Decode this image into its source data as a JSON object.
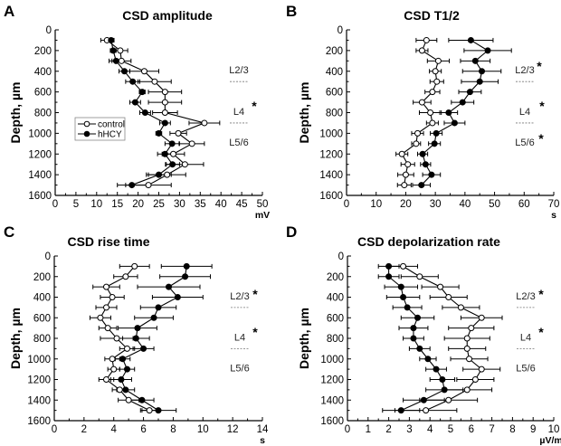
{
  "chart_data": [
    {
      "type": "line",
      "panel": "A",
      "title": "CSD amplitude",
      "xlabel": "mV",
      "ylabel": "Depth, µm",
      "xlim": [
        0,
        50
      ],
      "ylim": [
        0,
        1600
      ],
      "y_inverted": true,
      "xticks": [
        "0",
        "5",
        "10",
        "15",
        "20",
        "25",
        "30",
        "35",
        "40",
        "45",
        "50"
      ],
      "yticks": [
        "0",
        "200",
        "400",
        "600",
        "800",
        "1000",
        "1200",
        "1400",
        "1600"
      ],
      "depths": [
        100,
        200,
        300,
        400,
        500,
        600,
        700,
        800,
        900,
        1000,
        1100,
        1200,
        1300,
        1400,
        1500
      ],
      "legend": {
        "placement": "center-left",
        "entries": [
          "control",
          "hHCY"
        ]
      },
      "layers": [
        {
          "label": "L2/3",
          "star": false
        },
        {
          "label": "L4",
          "star": true
        },
        {
          "label": "L5/6",
          "star": false
        }
      ],
      "series": [
        {
          "name": "control",
          "marker": "open-circle",
          "values": [
            12.5,
            15.7,
            16,
            21.5,
            24,
            26.5,
            26.5,
            26.5,
            36,
            29.7,
            33,
            28.5,
            31.3,
            27,
            22.5
          ],
          "errors": [
            1.5,
            1.8,
            2.3,
            3.5,
            4,
            4,
            4,
            3,
            3.7,
            2,
            3,
            2.7,
            4.5,
            4.5,
            5.5
          ]
        },
        {
          "name": "hHCY",
          "marker": "filled-circle",
          "values": [
            13.5,
            14,
            14.7,
            16.7,
            18.7,
            21,
            19.3,
            21.7,
            26.5,
            25,
            28.2,
            26.5,
            28.3,
            25,
            18.5
          ],
          "errors": [
            0.7,
            0.7,
            1.7,
            1.3,
            1.7,
            0.7,
            1.3,
            1.3,
            1.3,
            0.7,
            1.7,
            1.8,
            1.7,
            3,
            3.5
          ]
        }
      ]
    },
    {
      "type": "line",
      "panel": "B",
      "title": "CSD T1/2",
      "xlabel": "s",
      "ylabel": "Depth, µm",
      "xlim": [
        0,
        70
      ],
      "ylim": [
        0,
        1600
      ],
      "y_inverted": true,
      "xticks": [
        "0",
        "10",
        "20",
        "30",
        "40",
        "50",
        "60",
        "70"
      ],
      "yticks": [
        "0",
        "200",
        "400",
        "600",
        "800",
        "1000",
        "1200",
        "1400",
        "1600"
      ],
      "depths": [
        100,
        200,
        300,
        400,
        500,
        600,
        700,
        800,
        900,
        1000,
        1100,
        1200,
        1300,
        1400,
        1500
      ],
      "layers": [
        {
          "label": "L2/3",
          "star": true
        },
        {
          "label": "L4",
          "star": true
        },
        {
          "label": "L5/6",
          "star": true
        }
      ],
      "series": [
        {
          "name": "control",
          "marker": "open-circle",
          "values": [
            27,
            25.5,
            31,
            30,
            30.5,
            29,
            25.5,
            28.3,
            29,
            24,
            23.5,
            18.7,
            20.7,
            20,
            19.5
          ],
          "errors": [
            3.5,
            2,
            3.7,
            2,
            2.3,
            2.5,
            3,
            3.7,
            2,
            2,
            1.5,
            2,
            2.3,
            2.7,
            2.3
          ]
        },
        {
          "name": "hHCY",
          "marker": "filled-circle",
          "values": [
            42,
            47.7,
            43.5,
            45.7,
            45,
            41.7,
            39.2,
            34.5,
            36.5,
            30.3,
            29.7,
            25.7,
            26.7,
            28.7,
            25.3
          ],
          "errors": [
            7.5,
            8,
            5,
            6.5,
            6.2,
            3.8,
            3.8,
            3,
            3.5,
            2,
            2,
            1.7,
            1.7,
            3,
            3
          ]
        }
      ]
    },
    {
      "type": "line",
      "panel": "C",
      "title": "CSD rise time",
      "xlabel": "s",
      "ylabel": "Depth, µm",
      "xlim": [
        0,
        14
      ],
      "ylim": [
        0,
        1600
      ],
      "y_inverted": true,
      "xticks": [
        "0",
        "2",
        "4",
        "6",
        "8",
        "10",
        "12",
        "14"
      ],
      "yticks": [
        "0",
        "200",
        "400",
        "600",
        "800",
        "1000",
        "1200",
        "1400",
        "1600"
      ],
      "depths": [
        100,
        200,
        300,
        400,
        500,
        600,
        700,
        800,
        900,
        1000,
        1100,
        1200,
        1300,
        1400,
        1500
      ],
      "layers": [
        {
          "label": "L2/3",
          "star": true
        },
        {
          "label": "L4",
          "star": true
        },
        {
          "label": "L5/6",
          "star": false
        }
      ],
      "series": [
        {
          "name": "control",
          "marker": "open-circle",
          "values": [
            5.4,
            4.8,
            3.5,
            3.9,
            3.5,
            3.1,
            3.6,
            4.2,
            4.9,
            3.9,
            4.0,
            3.5,
            4.4,
            5.0,
            6.4
          ],
          "errors": [
            1,
            0.8,
            0.9,
            0.8,
            0.7,
            0.7,
            0.6,
            1.1,
            0.5,
            0.5,
            0.4,
            0.5,
            0.5,
            0.7,
            0.5
          ]
        },
        {
          "name": "hHCY",
          "marker": "filled-circle",
          "values": [
            8.9,
            8.8,
            7.7,
            8.3,
            7.0,
            6.7,
            5.6,
            5.5,
            6.0,
            4.6,
            4.9,
            4.5,
            4.8,
            5.9,
            7.0
          ],
          "errors": [
            1.7,
            1.7,
            2.1,
            1.7,
            1.2,
            1.3,
            1.3,
            0.9,
            0.7,
            0.5,
            0.5,
            0.7,
            0.6,
            0.8,
            1.2
          ]
        }
      ]
    },
    {
      "type": "line",
      "panel": "D",
      "title": "CSD depolarization rate",
      "xlabel": "µV/ms",
      "ylabel": "Depth, µm",
      "xlim": [
        0,
        10
      ],
      "ylim": [
        0,
        1600
      ],
      "y_inverted": true,
      "xticks": [
        "0",
        "1",
        "2",
        "3",
        "4",
        "5",
        "6",
        "7",
        "8",
        "9",
        "10"
      ],
      "yticks": [
        "0",
        "200",
        "400",
        "600",
        "800",
        "1000",
        "1200",
        "1400",
        "1600"
      ],
      "depths": [
        100,
        200,
        300,
        400,
        500,
        600,
        700,
        800,
        900,
        1000,
        1100,
        1200,
        1300,
        1400,
        1500
      ],
      "layers": [
        {
          "label": "L2/3",
          "star": true
        },
        {
          "label": "L4",
          "star": true
        },
        {
          "label": "L5/6",
          "star": false
        }
      ],
      "series": [
        {
          "name": "control",
          "marker": "open-circle",
          "values": [
            2.7,
            3.5,
            4.5,
            4.9,
            5.5,
            6.5,
            6.0,
            5.8,
            5.8,
            5.9,
            6.5,
            6.2,
            5.8,
            4.9,
            3.8
          ],
          "errors": [
            0.7,
            0.9,
            0.9,
            0.9,
            0.9,
            1,
            1.1,
            1.1,
            0.9,
            0.9,
            0.9,
            0.9,
            1.2,
            1.4,
            1.5
          ]
        },
        {
          "name": "hHCY",
          "marker": "filled-circle",
          "values": [
            2.0,
            2.0,
            2.6,
            2.7,
            2.9,
            3.4,
            3.2,
            3.2,
            3.5,
            3.9,
            4.3,
            4.6,
            4.7,
            3.7,
            2.6
          ],
          "errors": [
            0.5,
            0.5,
            0.8,
            0.8,
            0.7,
            0.8,
            0.7,
            0.5,
            0.5,
            0.4,
            0.5,
            0.6,
            0.9,
            1,
            0.9
          ]
        }
      ]
    }
  ]
}
